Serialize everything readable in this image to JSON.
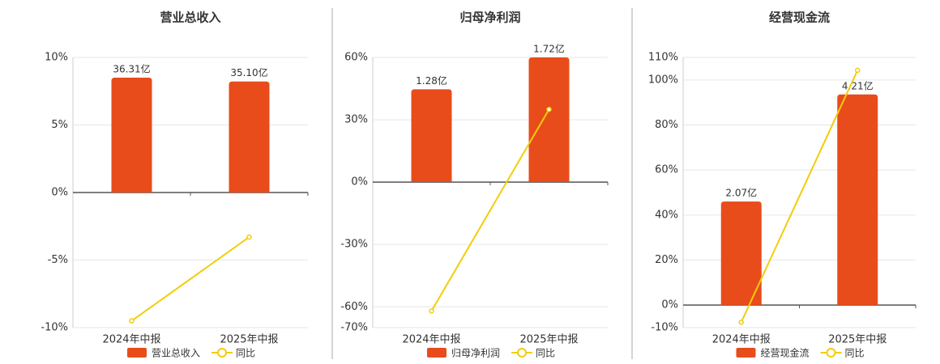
{
  "chart_data": [
    {
      "type": "bar",
      "title": "营业总收入",
      "categories": [
        "2024年中报",
        "2025年中报"
      ],
      "series": [
        {
          "name": "营业总收入",
          "type": "bar",
          "color": "#e84c1a",
          "axis": "y2",
          "values": [
            36.31,
            35.1
          ],
          "value_labels": [
            "36.31亿",
            "35.10亿"
          ]
        },
        {
          "name": "同比",
          "type": "line",
          "color": "#f2cd0a",
          "values": [
            -9.5,
            -3.3
          ]
        }
      ],
      "ylim": [
        -10,
        10
      ],
      "yticks": [
        {
          "value": 10,
          "label": "10%"
        },
        {
          "value": 5,
          "label": "5%"
        },
        {
          "value": 0,
          "label": "0%"
        },
        {
          "value": -5,
          "label": "-5%"
        },
        {
          "value": -10,
          "label": "-10%"
        }
      ],
      "y2lim": [
        -42.7,
        42.7
      ],
      "grid": true
    },
    {
      "type": "bar",
      "title": "归母净利润",
      "categories": [
        "2024年中报",
        "2025年中报"
      ],
      "series": [
        {
          "name": "归母净利润",
          "type": "bar",
          "color": "#e84c1a",
          "axis": "y2",
          "values": [
            1.28,
            1.72
          ],
          "value_labels": [
            "1.28亿",
            "1.72亿"
          ]
        },
        {
          "name": "同比",
          "type": "line",
          "color": "#f2cd0a",
          "values": [
            -62,
            35
          ]
        }
      ],
      "ylim": [
        -70,
        60
      ],
      "yticks": [
        {
          "value": 60,
          "label": "60%"
        },
        {
          "value": 30,
          "label": "30%"
        },
        {
          "value": 0,
          "label": "0%"
        },
        {
          "value": -30,
          "label": "-30%"
        },
        {
          "value": -60,
          "label": "-60%"
        },
        {
          "value": -70,
          "label": "-70%"
        }
      ],
      "y2lim": [
        -2.01,
        1.72
      ],
      "grid": true
    },
    {
      "type": "bar",
      "title": "经营现金流",
      "categories": [
        "2024年中报",
        "2025年中报"
      ],
      "series": [
        {
          "name": "经营现金流",
          "type": "bar",
          "color": "#e84c1a",
          "axis": "y2",
          "values": [
            2.07,
            4.21
          ],
          "value_labels": [
            "2.07亿",
            "4.21亿"
          ]
        },
        {
          "name": "同比",
          "type": "line",
          "color": "#f2cd0a",
          "values": [
            -7.6,
            104.3
          ]
        }
      ],
      "ylim": [
        -10,
        110
      ],
      "yticks": [
        {
          "value": 110,
          "label": "110%"
        },
        {
          "value": 100,
          "label": "100%"
        },
        {
          "value": 80,
          "label": "80%"
        },
        {
          "value": 60,
          "label": "60%"
        },
        {
          "value": 40,
          "label": "40%"
        },
        {
          "value": 20,
          "label": "20%"
        },
        {
          "value": 0,
          "label": "0%"
        },
        {
          "value": -10,
          "label": "-10%"
        }
      ],
      "y2lim": [
        -0.45,
        4.95
      ],
      "grid": true
    }
  ]
}
